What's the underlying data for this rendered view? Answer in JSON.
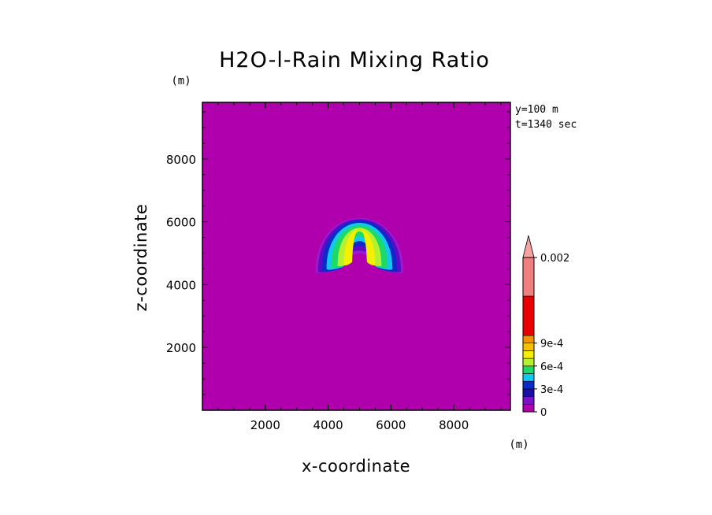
{
  "chart_data": {
    "type": "heatmap",
    "title": "H2O-l-Rain Mixing Ratio",
    "xlabel": "x-coordinate",
    "ylabel": "z-coordinate",
    "x_unit": "(m)",
    "y_unit": "(m)",
    "xlim": [
      0,
      9800
    ],
    "ylim": [
      0,
      9800
    ],
    "x_ticks": [
      2000,
      4000,
      6000,
      8000
    ],
    "y_ticks": [
      2000,
      4000,
      6000,
      8000
    ],
    "x_tick_labels": [
      "2000",
      "4000",
      "6000",
      "8000"
    ],
    "y_tick_labels": [
      "2000",
      "4000",
      "6000",
      "8000"
    ],
    "annotations": [
      "y=100 m",
      "t=1340 sec"
    ],
    "background_value": 0,
    "feature": {
      "shape": "crescent",
      "center": [
        5000,
        5100
      ],
      "max_value": 0.0008,
      "contours": [
        {
          "level": 5e-05,
          "outer_top": 6400,
          "inner_bottom": 4950,
          "half_width": 1400,
          "color": "#9A1ACE"
        },
        {
          "level": 0.0001,
          "outer_top": 6350,
          "inner_bottom": 5050,
          "half_width": 1320,
          "color": "#5A0CC8"
        },
        {
          "level": 0.0002,
          "outer_top": 6300,
          "inner_bottom": 5200,
          "half_width": 1200,
          "color": "#0A2BC8"
        },
        {
          "level": 0.0003,
          "outer_top": 6200,
          "inner_bottom": 5350,
          "half_width": 1050,
          "color": "#12C8EE"
        },
        {
          "level": 0.0004,
          "outer_top": 6100,
          "inner_bottom": 5500,
          "half_width": 900,
          "color": "#1DD968"
        },
        {
          "level": 0.0005,
          "outer_top": 6000,
          "inner_bottom": 5650,
          "half_width": 700,
          "color": "#B6F02E"
        },
        {
          "level": 0.0006,
          "outer_top": 5950,
          "inner_bottom": 5750,
          "half_width": 500,
          "color": "#F4F000"
        }
      ]
    },
    "colorbar": {
      "extend": "max",
      "levels": [
        0,
        0.0001,
        0.0002,
        0.0003,
        0.0004,
        0.0005,
        0.0006,
        0.0007,
        0.0008,
        0.0009,
        0.001,
        0.0015,
        0.002
      ],
      "colors": [
        "#B000AE",
        "#7A10C8",
        "#1E0EA8",
        "#0A2BC8",
        "#12C8EE",
        "#1DD968",
        "#B6F02E",
        "#F4F000",
        "#F2C200",
        "#F09400",
        "#E80000",
        "#F08080"
      ],
      "extend_color": "#F4A3A0",
      "tick_values": [
        0,
        0.0003,
        0.0006,
        0.0009,
        0.002
      ],
      "tick_labels": [
        "0",
        "3e-4",
        "6e-4",
        "9e-4",
        "0.002"
      ]
    }
  }
}
